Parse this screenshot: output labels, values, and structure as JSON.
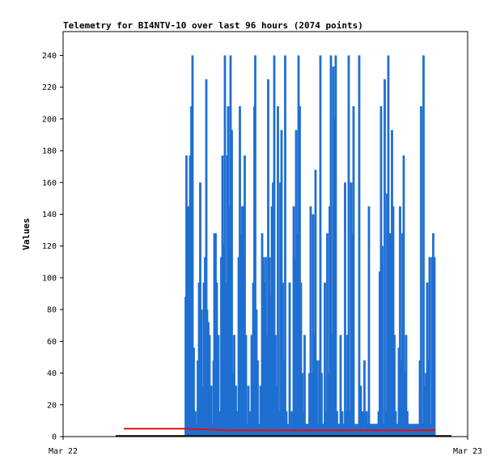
{
  "chart_data": {
    "type": "bar",
    "title": "Telemetry for BI4NTV-10 over last 96 hours (2074 points)",
    "xlabel": "",
    "ylabel": "Values",
    "x_tick_labels": [
      "Mar 22",
      "Mar 23"
    ],
    "ylim": [
      0,
      255
    ],
    "y_ticks": [
      0,
      20,
      40,
      60,
      80,
      100,
      120,
      140,
      160,
      180,
      200,
      220,
      240
    ],
    "grid": false,
    "legend": "none",
    "colors": {
      "bars": "#1f6fd1",
      "line": "#e01010",
      "axis": "#000000",
      "baseline": "#000000"
    },
    "series": [
      {
        "values": [
          [
            0.303,
            88
          ],
          [
            0.305,
            177
          ],
          [
            0.308,
            145
          ],
          [
            0.311,
            145
          ],
          [
            0.314,
            177
          ],
          [
            0.317,
            208
          ],
          [
            0.32,
            240
          ],
          [
            0.323,
            56
          ],
          [
            0.327,
            16
          ],
          [
            0.33,
            8
          ],
          [
            0.333,
            48
          ],
          [
            0.336,
            97
          ],
          [
            0.339,
            160
          ],
          [
            0.342,
            80
          ],
          [
            0.345,
            32
          ],
          [
            0.348,
            97
          ],
          [
            0.351,
            113
          ],
          [
            0.354,
            225
          ],
          [
            0.356,
            80
          ],
          [
            0.359,
            72
          ],
          [
            0.362,
            64
          ],
          [
            0.366,
            32
          ],
          [
            0.369,
            8
          ],
          [
            0.372,
            48
          ],
          [
            0.374,
            128
          ],
          [
            0.377,
            128
          ],
          [
            0.38,
            97
          ],
          [
            0.384,
            64
          ],
          [
            0.388,
            16
          ],
          [
            0.391,
            113
          ],
          [
            0.394,
            177
          ],
          [
            0.397,
            121
          ],
          [
            0.4,
            240
          ],
          [
            0.403,
            97
          ],
          [
            0.406,
            177
          ],
          [
            0.408,
            208
          ],
          [
            0.411,
            145
          ],
          [
            0.414,
            240
          ],
          [
            0.417,
            193
          ],
          [
            0.42,
            40
          ],
          [
            0.423,
            64
          ],
          [
            0.427,
            32
          ],
          [
            0.43,
            16
          ],
          [
            0.434,
            113
          ],
          [
            0.437,
            208
          ],
          [
            0.44,
            128
          ],
          [
            0.443,
            145
          ],
          [
            0.446,
            145
          ],
          [
            0.449,
            177
          ],
          [
            0.452,
            64
          ],
          [
            0.455,
            8
          ],
          [
            0.458,
            32
          ],
          [
            0.462,
            16
          ],
          [
            0.466,
            64
          ],
          [
            0.47,
            97
          ],
          [
            0.473,
            208
          ],
          [
            0.475,
            240
          ],
          [
            0.478,
            80
          ],
          [
            0.481,
            48
          ],
          [
            0.484,
            8
          ],
          [
            0.488,
            32
          ],
          [
            0.492,
            128
          ],
          [
            0.495,
            113
          ],
          [
            0.498,
            97
          ],
          [
            0.501,
            113
          ],
          [
            0.504,
            64
          ],
          [
            0.507,
            225
          ],
          [
            0.51,
            113
          ],
          [
            0.513,
            89
          ],
          [
            0.516,
            145
          ],
          [
            0.519,
            160
          ],
          [
            0.522,
            240
          ],
          [
            0.525,
            64
          ],
          [
            0.528,
            32
          ],
          [
            0.531,
            208
          ],
          [
            0.534,
            16
          ],
          [
            0.537,
            160
          ],
          [
            0.54,
            193
          ],
          [
            0.543,
            97
          ],
          [
            0.546,
            48
          ],
          [
            0.549,
            240
          ],
          [
            0.552,
            16
          ],
          [
            0.555,
            8
          ],
          [
            0.56,
            97
          ],
          [
            0.565,
            16
          ],
          [
            0.57,
            145
          ],
          [
            0.573,
            113
          ],
          [
            0.576,
            193
          ],
          [
            0.579,
            128
          ],
          [
            0.582,
            240
          ],
          [
            0.585,
            208
          ],
          [
            0.588,
            97
          ],
          [
            0.591,
            40
          ],
          [
            0.594,
            16
          ],
          [
            0.597,
            64
          ],
          [
            0.6,
            8
          ],
          [
            0.603,
            8
          ],
          [
            0.606,
            8
          ],
          [
            0.609,
            40
          ],
          [
            0.612,
            145
          ],
          [
            0.615,
            40
          ],
          [
            0.618,
            140
          ],
          [
            0.621,
            64
          ],
          [
            0.624,
            168
          ],
          [
            0.627,
            48
          ],
          [
            0.63,
            8
          ],
          [
            0.633,
            48
          ],
          [
            0.636,
            240
          ],
          [
            0.639,
            40
          ],
          [
            0.643,
            8
          ],
          [
            0.647,
            97
          ],
          [
            0.65,
            16
          ],
          [
            0.653,
            128
          ],
          [
            0.656,
            40
          ],
          [
            0.659,
            145
          ],
          [
            0.662,
            240
          ],
          [
            0.665,
            64
          ],
          [
            0.668,
            233
          ],
          [
            0.671,
            200
          ],
          [
            0.674,
            240
          ],
          [
            0.677,
            16
          ],
          [
            0.68,
            8
          ],
          [
            0.683,
            8
          ],
          [
            0.686,
            64
          ],
          [
            0.69,
            16
          ],
          [
            0.694,
            8
          ],
          [
            0.697,
            160
          ],
          [
            0.7,
            16
          ],
          [
            0.703,
            64
          ],
          [
            0.706,
            240
          ],
          [
            0.709,
            16
          ],
          [
            0.712,
            160
          ],
          [
            0.715,
            128
          ],
          [
            0.718,
            208
          ],
          [
            0.722,
            8
          ],
          [
            0.727,
            8
          ],
          [
            0.732,
            240
          ],
          [
            0.736,
            32
          ],
          [
            0.74,
            16
          ],
          [
            0.745,
            48
          ],
          [
            0.75,
            16
          ],
          [
            0.753,
            8
          ],
          [
            0.756,
            145
          ],
          [
            0.76,
            8
          ],
          [
            0.764,
            8
          ],
          [
            0.768,
            8
          ],
          [
            0.772,
            8
          ],
          [
            0.776,
            8
          ],
          [
            0.78,
            16
          ],
          [
            0.783,
            104
          ],
          [
            0.786,
            208
          ],
          [
            0.789,
            120
          ],
          [
            0.792,
            8
          ],
          [
            0.795,
            225
          ],
          [
            0.798,
            16
          ],
          [
            0.801,
            153
          ],
          [
            0.804,
            240
          ],
          [
            0.807,
            128
          ],
          [
            0.81,
            128
          ],
          [
            0.813,
            193
          ],
          [
            0.816,
            145
          ],
          [
            0.819,
            64
          ],
          [
            0.822,
            16
          ],
          [
            0.826,
            8
          ],
          [
            0.83,
            56
          ],
          [
            0.833,
            145
          ],
          [
            0.836,
            48
          ],
          [
            0.839,
            128
          ],
          [
            0.842,
            177
          ],
          [
            0.845,
            40
          ],
          [
            0.848,
            64
          ],
          [
            0.851,
            16
          ],
          [
            0.854,
            8
          ],
          [
            0.857,
            8
          ],
          [
            0.861,
            8
          ],
          [
            0.866,
            8
          ],
          [
            0.87,
            8
          ],
          [
            0.874,
            8
          ],
          [
            0.878,
            8
          ],
          [
            0.882,
            48
          ],
          [
            0.885,
            208
          ],
          [
            0.888,
            8
          ],
          [
            0.891,
            240
          ],
          [
            0.894,
            32
          ],
          [
            0.897,
            40
          ],
          [
            0.9,
            97
          ],
          [
            0.903,
            48
          ],
          [
            0.906,
            113
          ],
          [
            0.909,
            8
          ],
          [
            0.912,
            113
          ],
          [
            0.915,
            128
          ],
          [
            0.918,
            113
          ]
        ]
      },
      {
        "values": [
          [
            0.15,
            5
          ],
          [
            0.3,
            5
          ],
          [
            0.4,
            4
          ],
          [
            0.5,
            4
          ],
          [
            0.6,
            4
          ],
          [
            0.7,
            4
          ],
          [
            0.8,
            4
          ],
          [
            0.92,
            4
          ]
        ]
      }
    ]
  }
}
